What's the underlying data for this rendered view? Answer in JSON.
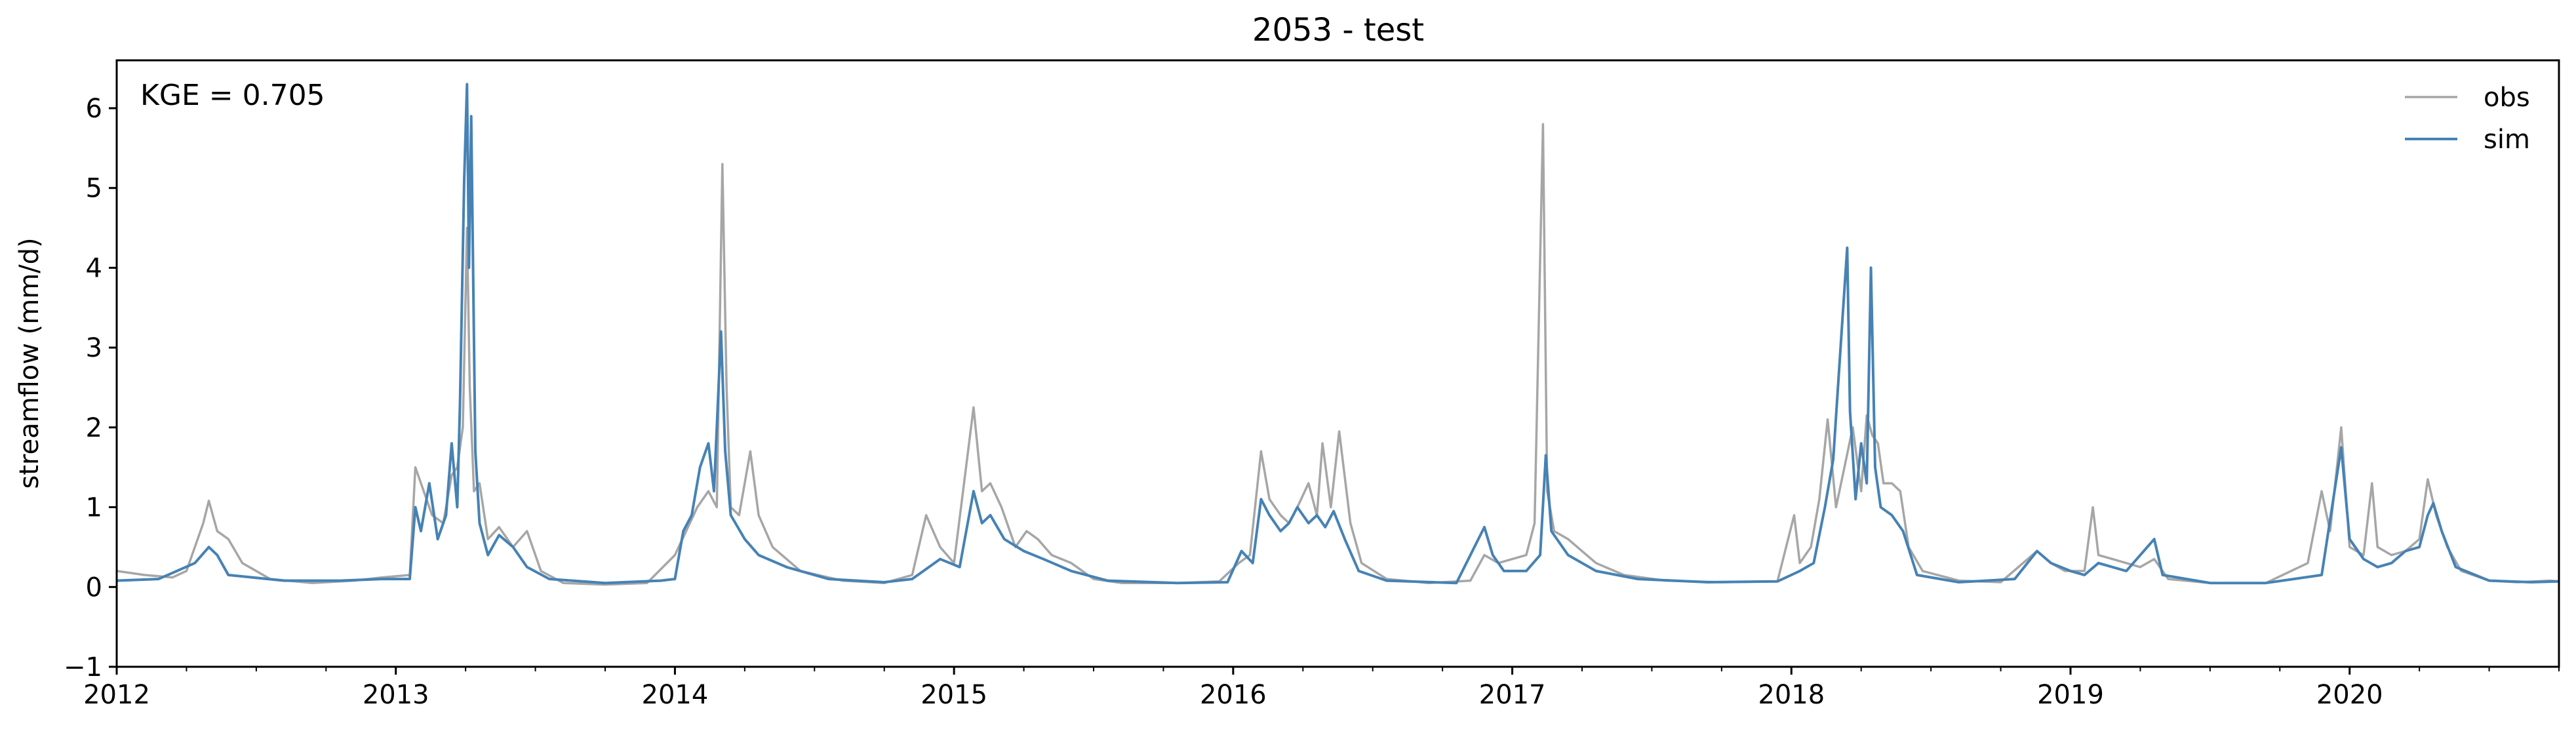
{
  "chart_data": {
    "type": "line",
    "title": "2053 - test",
    "xlabel": "",
    "ylabel": "streamflow (mm/d)",
    "annotation": "KGE = 0.705",
    "xlim": [
      2012.0,
      2020.75
    ],
    "ylim": [
      -1,
      6.6
    ],
    "x_ticks": [
      2012,
      2013,
      2014,
      2015,
      2016,
      2017,
      2018,
      2019,
      2020
    ],
    "x_tick_labels": [
      "2012",
      "2013",
      "2014",
      "2015",
      "2016",
      "2017",
      "2018",
      "2019",
      "2020"
    ],
    "y_ticks": [
      -1,
      0,
      1,
      2,
      3,
      4,
      5,
      6
    ],
    "y_tick_labels": [
      "−1",
      "0",
      "1",
      "2",
      "3",
      "4",
      "5",
      "6"
    ],
    "legend_position": "top-right",
    "series": [
      {
        "name": "obs",
        "color": "#a6a6a6",
        "points": [
          [
            2012.0,
            0.2
          ],
          [
            2012.1,
            0.15
          ],
          [
            2012.2,
            0.12
          ],
          [
            2012.25,
            0.2
          ],
          [
            2012.28,
            0.5
          ],
          [
            2012.31,
            0.8
          ],
          [
            2012.33,
            1.08
          ],
          [
            2012.36,
            0.7
          ],
          [
            2012.4,
            0.6
          ],
          [
            2012.45,
            0.3
          ],
          [
            2012.55,
            0.1
          ],
          [
            2012.7,
            0.05
          ],
          [
            2012.85,
            0.08
          ],
          [
            2012.95,
            0.12
          ],
          [
            2013.05,
            0.15
          ],
          [
            2013.07,
            1.5
          ],
          [
            2013.1,
            1.2
          ],
          [
            2013.13,
            0.9
          ],
          [
            2013.17,
            0.8
          ],
          [
            2013.2,
            1.4
          ],
          [
            2013.22,
            1.5
          ],
          [
            2013.24,
            2.0
          ],
          [
            2013.255,
            4.5
          ],
          [
            2013.265,
            2.5
          ],
          [
            2013.28,
            1.2
          ],
          [
            2013.3,
            1.3
          ],
          [
            2013.33,
            0.6
          ],
          [
            2013.37,
            0.75
          ],
          [
            2013.42,
            0.5
          ],
          [
            2013.47,
            0.7
          ],
          [
            2013.52,
            0.2
          ],
          [
            2013.6,
            0.05
          ],
          [
            2013.75,
            0.03
          ],
          [
            2013.9,
            0.05
          ],
          [
            2014.0,
            0.4
          ],
          [
            2014.04,
            0.7
          ],
          [
            2014.08,
            1.0
          ],
          [
            2014.12,
            1.2
          ],
          [
            2014.15,
            1.0
          ],
          [
            2014.17,
            5.3
          ],
          [
            2014.185,
            2.5
          ],
          [
            2014.2,
            1.0
          ],
          [
            2014.23,
            0.9
          ],
          [
            2014.27,
            1.7
          ],
          [
            2014.3,
            0.9
          ],
          [
            2014.35,
            0.5
          ],
          [
            2014.45,
            0.2
          ],
          [
            2014.6,
            0.08
          ],
          [
            2014.75,
            0.05
          ],
          [
            2014.85,
            0.15
          ],
          [
            2014.9,
            0.9
          ],
          [
            2014.95,
            0.5
          ],
          [
            2015.0,
            0.3
          ],
          [
            2015.07,
            2.25
          ],
          [
            2015.1,
            1.2
          ],
          [
            2015.13,
            1.3
          ],
          [
            2015.17,
            1.0
          ],
          [
            2015.22,
            0.5
          ],
          [
            2015.26,
            0.7
          ],
          [
            2015.3,
            0.6
          ],
          [
            2015.35,
            0.4
          ],
          [
            2015.42,
            0.3
          ],
          [
            2015.5,
            0.1
          ],
          [
            2015.6,
            0.05
          ],
          [
            2015.8,
            0.05
          ],
          [
            2015.95,
            0.07
          ],
          [
            2016.02,
            0.3
          ],
          [
            2016.06,
            0.4
          ],
          [
            2016.1,
            1.7
          ],
          [
            2016.13,
            1.1
          ],
          [
            2016.17,
            0.9
          ],
          [
            2016.2,
            0.8
          ],
          [
            2016.23,
            1.0
          ],
          [
            2016.27,
            1.3
          ],
          [
            2016.3,
            0.9
          ],
          [
            2016.32,
            1.8
          ],
          [
            2016.35,
            1.0
          ],
          [
            2016.38,
            1.95
          ],
          [
            2016.42,
            0.8
          ],
          [
            2016.46,
            0.3
          ],
          [
            2016.55,
            0.1
          ],
          [
            2016.7,
            0.05
          ],
          [
            2016.85,
            0.08
          ],
          [
            2016.9,
            0.4
          ],
          [
            2016.95,
            0.3
          ],
          [
            2017.05,
            0.4
          ],
          [
            2017.08,
            0.8
          ],
          [
            2017.11,
            5.8
          ],
          [
            2017.125,
            1.2
          ],
          [
            2017.15,
            0.7
          ],
          [
            2017.2,
            0.6
          ],
          [
            2017.3,
            0.3
          ],
          [
            2017.4,
            0.15
          ],
          [
            2017.55,
            0.08
          ],
          [
            2017.75,
            0.06
          ],
          [
            2017.95,
            0.07
          ],
          [
            2018.01,
            0.9
          ],
          [
            2018.03,
            0.3
          ],
          [
            2018.07,
            0.5
          ],
          [
            2018.1,
            1.1
          ],
          [
            2018.13,
            2.1
          ],
          [
            2018.16,
            1.0
          ],
          [
            2018.19,
            1.5
          ],
          [
            2018.22,
            2.0
          ],
          [
            2018.25,
            1.2
          ],
          [
            2018.27,
            2.15
          ],
          [
            2018.29,
            1.9
          ],
          [
            2018.31,
            1.8
          ],
          [
            2018.33,
            1.3
          ],
          [
            2018.36,
            1.3
          ],
          [
            2018.39,
            1.2
          ],
          [
            2018.42,
            0.5
          ],
          [
            2018.47,
            0.2
          ],
          [
            2018.6,
            0.08
          ],
          [
            2018.75,
            0.06
          ],
          [
            2018.88,
            0.45
          ],
          [
            2018.93,
            0.3
          ],
          [
            2018.98,
            0.2
          ],
          [
            2019.05,
            0.2
          ],
          [
            2019.08,
            1.0
          ],
          [
            2019.1,
            0.4
          ],
          [
            2019.15,
            0.35
          ],
          [
            2019.25,
            0.25
          ],
          [
            2019.3,
            0.35
          ],
          [
            2019.35,
            0.1
          ],
          [
            2019.5,
            0.05
          ],
          [
            2019.7,
            0.05
          ],
          [
            2019.85,
            0.3
          ],
          [
            2019.9,
            1.2
          ],
          [
            2019.93,
            0.7
          ],
          [
            2019.97,
            2.0
          ],
          [
            2020.0,
            0.5
          ],
          [
            2020.05,
            0.4
          ],
          [
            2020.08,
            1.3
          ],
          [
            2020.1,
            0.5
          ],
          [
            2020.15,
            0.4
          ],
          [
            2020.2,
            0.45
          ],
          [
            2020.25,
            0.6
          ],
          [
            2020.28,
            1.35
          ],
          [
            2020.31,
            0.9
          ],
          [
            2020.35,
            0.5
          ],
          [
            2020.4,
            0.2
          ],
          [
            2020.5,
            0.08
          ],
          [
            2020.6,
            0.06
          ],
          [
            2020.72,
            0.08
          ],
          [
            2020.75,
            0.07
          ]
        ]
      },
      {
        "name": "sim",
        "color": "#4682b4",
        "points": [
          [
            2012.0,
            0.08
          ],
          [
            2012.15,
            0.1
          ],
          [
            2012.28,
            0.3
          ],
          [
            2012.33,
            0.5
          ],
          [
            2012.36,
            0.4
          ],
          [
            2012.4,
            0.15
          ],
          [
            2012.6,
            0.08
          ],
          [
            2012.8,
            0.08
          ],
          [
            2012.95,
            0.1
          ],
          [
            2013.05,
            0.1
          ],
          [
            2013.07,
            1.0
          ],
          [
            2013.09,
            0.7
          ],
          [
            2013.12,
            1.3
          ],
          [
            2013.15,
            0.6
          ],
          [
            2013.18,
            0.9
          ],
          [
            2013.2,
            1.8
          ],
          [
            2013.22,
            1.0
          ],
          [
            2013.23,
            2.3
          ],
          [
            2013.245,
            5.1
          ],
          [
            2013.255,
            6.3
          ],
          [
            2013.262,
            4.0
          ],
          [
            2013.27,
            5.9
          ],
          [
            2013.285,
            1.7
          ],
          [
            2013.3,
            0.8
          ],
          [
            2013.33,
            0.4
          ],
          [
            2013.37,
            0.65
          ],
          [
            2013.42,
            0.5
          ],
          [
            2013.47,
            0.25
          ],
          [
            2013.55,
            0.1
          ],
          [
            2013.75,
            0.05
          ],
          [
            2013.95,
            0.08
          ],
          [
            2014.0,
            0.1
          ],
          [
            2014.03,
            0.7
          ],
          [
            2014.06,
            0.9
          ],
          [
            2014.09,
            1.5
          ],
          [
            2014.12,
            1.8
          ],
          [
            2014.14,
            1.2
          ],
          [
            2014.165,
            3.2
          ],
          [
            2014.18,
            1.7
          ],
          [
            2014.2,
            0.9
          ],
          [
            2014.25,
            0.6
          ],
          [
            2014.3,
            0.4
          ],
          [
            2014.4,
            0.25
          ],
          [
            2014.55,
            0.1
          ],
          [
            2014.75,
            0.06
          ],
          [
            2014.85,
            0.1
          ],
          [
            2014.95,
            0.35
          ],
          [
            2015.02,
            0.25
          ],
          [
            2015.07,
            1.2
          ],
          [
            2015.1,
            0.8
          ],
          [
            2015.13,
            0.9
          ],
          [
            2015.18,
            0.6
          ],
          [
            2015.25,
            0.45
          ],
          [
            2015.32,
            0.35
          ],
          [
            2015.42,
            0.2
          ],
          [
            2015.55,
            0.08
          ],
          [
            2015.8,
            0.05
          ],
          [
            2015.98,
            0.06
          ],
          [
            2016.03,
            0.45
          ],
          [
            2016.07,
            0.3
          ],
          [
            2016.1,
            1.1
          ],
          [
            2016.13,
            0.9
          ],
          [
            2016.17,
            0.7
          ],
          [
            2016.2,
            0.8
          ],
          [
            2016.23,
            1.0
          ],
          [
            2016.27,
            0.8
          ],
          [
            2016.3,
            0.9
          ],
          [
            2016.33,
            0.75
          ],
          [
            2016.36,
            0.95
          ],
          [
            2016.4,
            0.6
          ],
          [
            2016.45,
            0.2
          ],
          [
            2016.55,
            0.08
          ],
          [
            2016.8,
            0.05
          ],
          [
            2016.9,
            0.75
          ],
          [
            2016.93,
            0.4
          ],
          [
            2016.97,
            0.2
          ],
          [
            2017.05,
            0.2
          ],
          [
            2017.1,
            0.4
          ],
          [
            2017.12,
            1.65
          ],
          [
            2017.14,
            0.7
          ],
          [
            2017.2,
            0.4
          ],
          [
            2017.3,
            0.2
          ],
          [
            2017.45,
            0.1
          ],
          [
            2017.7,
            0.06
          ],
          [
            2017.95,
            0.07
          ],
          [
            2018.03,
            0.2
          ],
          [
            2018.08,
            0.3
          ],
          [
            2018.12,
            1.0
          ],
          [
            2018.15,
            1.6
          ],
          [
            2018.18,
            3.2
          ],
          [
            2018.2,
            4.25
          ],
          [
            2018.21,
            2.2
          ],
          [
            2018.23,
            1.1
          ],
          [
            2018.25,
            1.8
          ],
          [
            2018.27,
            1.3
          ],
          [
            2018.285,
            4.0
          ],
          [
            2018.3,
            1.5
          ],
          [
            2018.32,
            1.0
          ],
          [
            2018.36,
            0.9
          ],
          [
            2018.4,
            0.7
          ],
          [
            2018.45,
            0.15
          ],
          [
            2018.6,
            0.06
          ],
          [
            2018.8,
            0.1
          ],
          [
            2018.88,
            0.45
          ],
          [
            2018.93,
            0.3
          ],
          [
            2019.0,
            0.2
          ],
          [
            2019.05,
            0.15
          ],
          [
            2019.1,
            0.3
          ],
          [
            2019.2,
            0.2
          ],
          [
            2019.3,
            0.6
          ],
          [
            2019.33,
            0.15
          ],
          [
            2019.5,
            0.05
          ],
          [
            2019.7,
            0.05
          ],
          [
            2019.9,
            0.15
          ],
          [
            2019.97,
            1.75
          ],
          [
            2020.0,
            0.6
          ],
          [
            2020.05,
            0.35
          ],
          [
            2020.1,
            0.25
          ],
          [
            2020.15,
            0.3
          ],
          [
            2020.2,
            0.45
          ],
          [
            2020.25,
            0.5
          ],
          [
            2020.28,
            0.9
          ],
          [
            2020.3,
            1.05
          ],
          [
            2020.33,
            0.7
          ],
          [
            2020.38,
            0.25
          ],
          [
            2020.5,
            0.08
          ],
          [
            2020.65,
            0.06
          ],
          [
            2020.75,
            0.07
          ]
        ]
      }
    ]
  }
}
